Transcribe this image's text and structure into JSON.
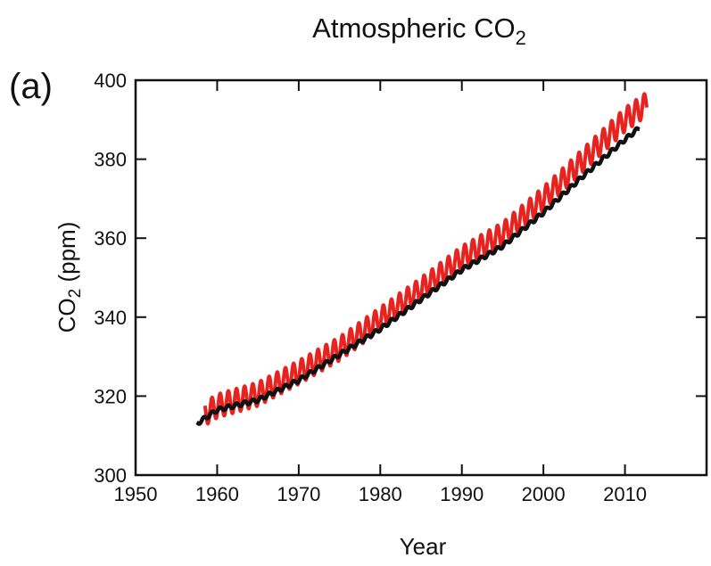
{
  "panel_label": "(a)",
  "chart_data": {
    "type": "line",
    "title": "Atmospheric CO",
    "title_subscript": "2",
    "xlabel": "Year",
    "ylabel": "CO",
    "ylabel_subscript": "2",
    "ylabel_suffix": " (ppm)",
    "xlim": [
      1950,
      2020
    ],
    "ylim": [
      300,
      400
    ],
    "xticks": [
      1950,
      1960,
      1970,
      1980,
      1990,
      2000,
      2010
    ],
    "yticks": [
      300,
      320,
      340,
      360,
      380,
      400
    ],
    "grid": false,
    "legend": "none",
    "series": [
      {
        "color": "#e8231f",
        "seasonal_amplitude": 3,
        "x": [
          1958.5,
          1960,
          1965,
          1970,
          1975,
          1980,
          1985,
          1990,
          1995,
          2000,
          2005,
          2010,
          2012.7
        ],
        "y": [
          315.5,
          317.5,
          320.5,
          326,
          332,
          339.5,
          347,
          355,
          361,
          370,
          380,
          390,
          394
        ]
      },
      {
        "color": "#111111",
        "seasonal_amplitude": 0.5,
        "x": [
          1957.5,
          1960,
          1965,
          1970,
          1975,
          1980,
          1985,
          1990,
          1995,
          2000,
          2005,
          2010,
          2011.8
        ],
        "y": [
          313,
          316.5,
          319,
          324,
          330.5,
          337,
          344.5,
          352,
          358,
          366.5,
          376,
          385,
          388
        ]
      }
    ]
  }
}
